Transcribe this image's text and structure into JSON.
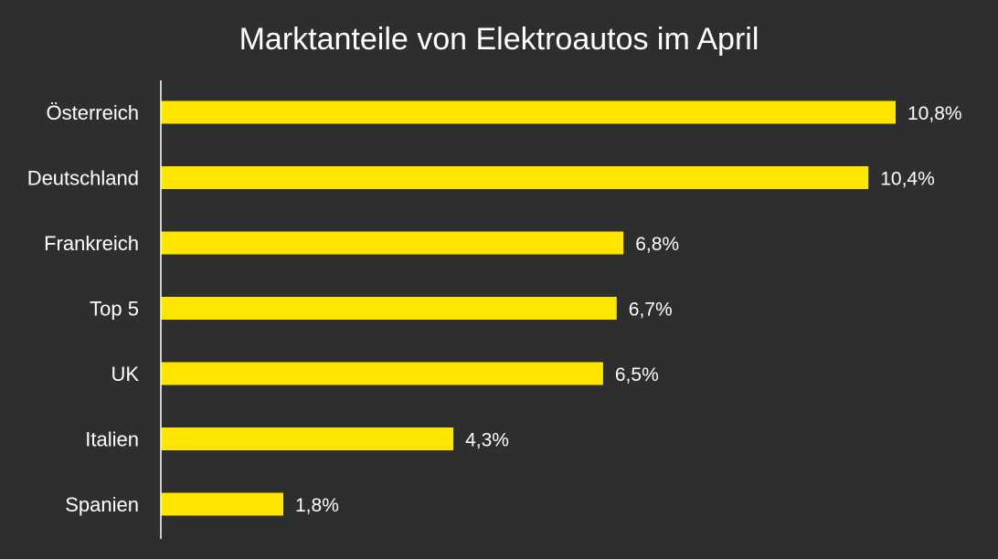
{
  "chart_data": {
    "type": "bar",
    "orientation": "horizontal",
    "title": "Marktanteile von Elektroautos im April",
    "xlabel": "",
    "ylabel": "",
    "categories": [
      "Österreich",
      "Deutschland",
      "Frankreich",
      "Top 5",
      "UK",
      "Italien",
      "Spanien"
    ],
    "values": [
      10.8,
      10.4,
      6.8,
      6.7,
      6.5,
      4.3,
      1.8
    ],
    "value_labels": [
      "10,8%",
      "10,4%",
      "6,8%",
      "6,7%",
      "6,5%",
      "4,3%",
      "1,8%"
    ],
    "xlim": [
      0,
      10.8
    ],
    "grid": false,
    "legend": "none"
  },
  "colors": {
    "background": "#2e2e2e",
    "bar": "#ffe600",
    "text": "#ffffff",
    "axis": "#ffffff"
  }
}
